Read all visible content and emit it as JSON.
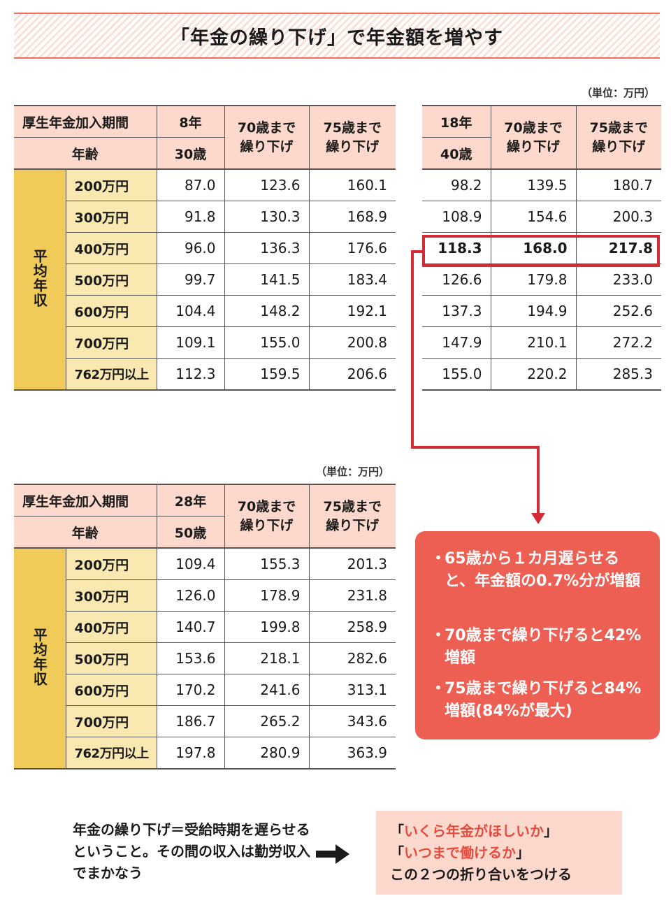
{
  "title": "「年金の繰り下げ」で年金額を増やす",
  "unit_label": "（単位：万円）",
  "tables": {
    "t8": {
      "col_period_label": "厚生年金加入期間",
      "col_age_label": "年齢",
      "years": "8年",
      "age": "30歳",
      "col70": "70歳まで\n繰り下げ",
      "col75": "75歳まで\n繰り下げ",
      "side_label": "平均年収",
      "rows": [
        {
          "income": "200万円",
          "base": "87.0",
          "d70": "123.6",
          "d75": "160.1"
        },
        {
          "income": "300万円",
          "base": "91.8",
          "d70": "130.3",
          "d75": "168.9"
        },
        {
          "income": "400万円",
          "base": "96.0",
          "d70": "136.3",
          "d75": "176.6"
        },
        {
          "income": "500万円",
          "base": "99.7",
          "d70": "141.5",
          "d75": "183.4"
        },
        {
          "income": "600万円",
          "base": "104.4",
          "d70": "148.2",
          "d75": "192.1"
        },
        {
          "income": "700万円",
          "base": "109.1",
          "d70": "155.0",
          "d75": "200.8"
        },
        {
          "income": "762万円以上",
          "base": "112.3",
          "d70": "159.5",
          "d75": "206.6"
        }
      ]
    },
    "t18": {
      "years": "18年",
      "age": "40歳",
      "col70": "70歳まで\n繰り下げ",
      "col75": "75歳まで\n繰り下げ",
      "rows": [
        {
          "base": "98.2",
          "d70": "139.5",
          "d75": "180.7"
        },
        {
          "base": "108.9",
          "d70": "154.6",
          "d75": "200.3"
        },
        {
          "base": "118.3",
          "d70": "168.0",
          "d75": "217.8"
        },
        {
          "base": "126.6",
          "d70": "179.8",
          "d75": "233.0"
        },
        {
          "base": "137.3",
          "d70": "194.9",
          "d75": "252.6"
        },
        {
          "base": "147.9",
          "d70": "210.1",
          "d75": "272.2"
        },
        {
          "base": "155.0",
          "d70": "220.2",
          "d75": "285.3"
        }
      ]
    },
    "t28": {
      "col_period_label": "厚生年金加入期間",
      "col_age_label": "年齢",
      "years": "28年",
      "age": "50歳",
      "col70": "70歳まで\n繰り下げ",
      "col75": "75歳まで\n繰り下げ",
      "side_label": "平均年収",
      "rows": [
        {
          "income": "200万円",
          "base": "109.4",
          "d70": "155.3",
          "d75": "201.3"
        },
        {
          "income": "300万円",
          "base": "126.0",
          "d70": "178.9",
          "d75": "231.8"
        },
        {
          "income": "400万円",
          "base": "140.7",
          "d70": "199.8",
          "d75": "258.9"
        },
        {
          "income": "500万円",
          "base": "153.6",
          "d70": "218.1",
          "d75": "282.6"
        },
        {
          "income": "600万円",
          "base": "170.2",
          "d70": "241.6",
          "d75": "313.1"
        },
        {
          "income": "700万円",
          "base": "186.7",
          "d70": "265.2",
          "d75": "343.6"
        },
        {
          "income": "762万円以上",
          "base": "197.8",
          "d70": "280.9",
          "d75": "363.9"
        }
      ]
    }
  },
  "notes": {
    "bullet": "・",
    "n1": "65歳から１カ月遅らせると、年金額の0.7%分が増額",
    "n2": "70歳まで繰り下げると42%増額",
    "n3": "75歳まで繰り下げると84%増額(84%が最大)"
  },
  "bottom": {
    "explain": "年金の繰り下げ＝受給時期を遅らせるということ。その間の収入は勤労収入でまかなう",
    "q1_open": "「",
    "q1_text": "いくら年金がほしいか",
    "q1_close": "」",
    "q2_open": "「",
    "q2_text": "いつまで働けるか",
    "q2_close": "」",
    "conclusion": "この２つの折り合いをつける"
  },
  "colors": {
    "header_pink": "#fcd9cc",
    "income_yellow": "#f9e9b0",
    "side_gold": "#f1cb5a",
    "highlight_red": "#d42a36",
    "note_red": "#ee5f53"
  }
}
